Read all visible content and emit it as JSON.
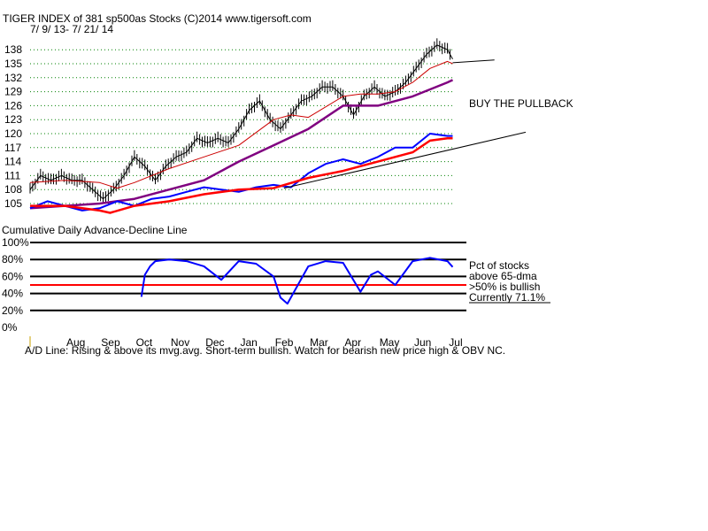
{
  "header": {
    "title": "TIGER INDEX of  381 sp500as Stocks  (C)2014  www.tigersoft.com",
    "date_range": "7/ 9/ 13- 7/ 21/ 14"
  },
  "annotations": {
    "buy": "BUY THE PULLBACK",
    "pct_line1": "Pct of stocks",
    "pct_line2": "above 65-dma",
    "bullish": ">50% is bullish",
    "currently": "Currently  71.1%"
  },
  "lower_title": "Cumulative Daily Advance-Decline Line",
  "footer": "A/D Line: Rising & above its mvg.avg. Short-term bullish. Watch for bearish new price high & OBV NC.",
  "colors": {
    "price": "#000000",
    "ma_short": "#cc0000",
    "ma_long": "#800080",
    "ad_line": "#0000ff",
    "ad_ma": "#ff0000",
    "pct_line": "#0000ff",
    "grid_dot": "#008000",
    "ref50": "#ff0000"
  },
  "chart_data": [
    {
      "type": "line",
      "title": "TIGER INDEX of  381 sp500as Stocks  (C)2014  www.tigersoft.com",
      "y_ticks": [
        105,
        108,
        111,
        114,
        117,
        120,
        123,
        126,
        129,
        132,
        135,
        138
      ],
      "ylim": [
        103,
        140
      ],
      "x_ticks": [
        "Aug",
        "Sep",
        "Oct",
        "Nov",
        "Dec",
        "Jan",
        "Feb",
        "Mar",
        "Apr",
        "May",
        "Jun",
        "Jul"
      ],
      "grid": "dotted horizontal",
      "series": [
        {
          "role": "price",
          "x": [
            0,
            0.3,
            0.6,
            0.9,
            1.2,
            1.5,
            1.8,
            2.1,
            2.4,
            2.7,
            3.0,
            3.3,
            3.6,
            3.9,
            4.2,
            4.5,
            4.8,
            5.1,
            5.4,
            5.7,
            6.0,
            6.3,
            6.6,
            6.9,
            7.2,
            7.5,
            7.8,
            8.1,
            8.4,
            8.7,
            9.0,
            9.3,
            9.6,
            9.9,
            10.2,
            10.5,
            10.8,
            11.1,
            11.4,
            11.7,
            12.0,
            12.15
          ],
          "values": [
            108,
            111,
            110,
            111,
            110,
            110,
            108,
            106,
            108,
            111,
            115,
            113,
            110,
            113,
            115,
            116,
            119,
            118,
            119,
            118,
            121,
            125,
            127,
            123,
            121,
            124,
            127,
            128,
            130,
            130,
            128,
            124,
            128,
            130,
            128,
            129,
            131,
            134,
            137,
            139,
            138,
            136
          ]
        },
        {
          "role": "ma_short",
          "x": [
            0,
            1,
            2,
            2.5,
            3,
            4,
            5,
            6,
            7,
            7.5,
            8,
            9,
            9.5,
            10,
            10.5,
            11,
            11.5,
            12,
            12.15
          ],
          "values": [
            109.5,
            110,
            109.5,
            108.3,
            109.5,
            112.5,
            115,
            117.5,
            123,
            124,
            123.5,
            128,
            128.5,
            128.5,
            129,
            131,
            134,
            135.5,
            135
          ]
        },
        {
          "role": "ma_long",
          "x": [
            0,
            1,
            2,
            3,
            4,
            5,
            6,
            7,
            8,
            9,
            10,
            11,
            12,
            12.15
          ],
          "values": [
            104,
            104.5,
            105,
            106,
            108,
            110,
            114,
            117.5,
            121,
            126,
            126,
            128,
            131,
            131.5
          ]
        },
        {
          "role": "ad_line",
          "x": [
            0,
            0.5,
            1,
            1.5,
            2,
            2.5,
            3,
            3.5,
            4,
            4.5,
            5,
            5.5,
            6,
            6.5,
            7,
            7.5,
            8,
            8.5,
            9,
            9.5,
            10,
            10.5,
            11,
            11.5,
            12,
            12.15
          ],
          "values": [
            104,
            105.5,
            104.5,
            103.5,
            104,
            105.5,
            104.5,
            106,
            106.5,
            107.5,
            108.5,
            108,
            107.5,
            108.5,
            109,
            108.5,
            111.5,
            113.5,
            114.5,
            113.5,
            115,
            117,
            117,
            120,
            119.5,
            119.5
          ]
        },
        {
          "role": "ad_ma",
          "x": [
            0,
            1,
            2,
            2.3,
            3,
            4,
            5,
            6,
            7,
            8,
            9,
            10,
            11,
            11.5,
            12,
            12.15
          ],
          "values": [
            104.5,
            104.5,
            103.5,
            103,
            104.5,
            105.5,
            107,
            108,
            108.3,
            110.5,
            112,
            114,
            116,
            118.5,
            119,
            119
          ]
        },
        {
          "role": "trendline",
          "x": [
            7.3,
            14.25
          ],
          "values": [
            108.3,
            120.3
          ]
        },
        {
          "role": "trendline",
          "x": [
            12.15,
            13.35
          ],
          "values": [
            135.2,
            135.8
          ]
        }
      ]
    },
    {
      "type": "line",
      "title": "Cumulative Daily Advance-Decline Line",
      "y_ticks": [
        "0%",
        "20%",
        "40%",
        "60%",
        "80%",
        "100%"
      ],
      "ylim": [
        0,
        100
      ],
      "reference_line": 50,
      "x_ticks": [
        "Aug",
        "Sep",
        "Oct",
        "Nov",
        "Dec",
        "Jan",
        "Feb",
        "Mar",
        "Apr",
        "May",
        "Jun",
        "Jul"
      ],
      "series": [
        {
          "role": "pct_above_65dma",
          "x": [
            3.2,
            3.3,
            3.45,
            3.6,
            4,
            4.5,
            5,
            5.5,
            6,
            6.5,
            7,
            7.2,
            7.4,
            7.7,
            8,
            8.5,
            9,
            9.5,
            9.8,
            10,
            10.5,
            11,
            11.5,
            12,
            12.15
          ],
          "values": [
            36,
            62,
            72,
            78,
            80,
            78,
            72,
            56,
            78,
            75,
            60,
            35,
            28,
            50,
            72,
            78,
            76,
            42,
            62,
            66,
            50,
            78,
            82,
            78,
            71.1
          ]
        }
      ]
    }
  ]
}
